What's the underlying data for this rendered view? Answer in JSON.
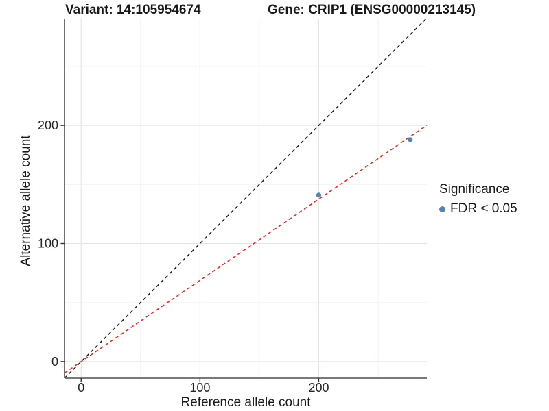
{
  "titles": {
    "variant": "Variant: 14:105954674",
    "gene": "Gene: CRIP1 (ENSG00000213145)"
  },
  "chart_data": {
    "type": "scatter",
    "title_left": "Variant: 14:105954674",
    "title_right": "Gene: CRIP1 (ENSG00000213145)",
    "xlabel": "Reference allele count",
    "ylabel": "Alternative allele count",
    "xlim": [
      -14,
      291
    ],
    "ylim": [
      -14,
      290
    ],
    "x_major_ticks": [
      0,
      100,
      200
    ],
    "y_major_ticks": [
      0,
      100,
      200
    ],
    "x_minor_ticks": [
      50,
      150,
      250
    ],
    "y_minor_ticks": [
      50,
      150,
      250
    ],
    "grid": "major and minor gridlines on, white background",
    "points": [
      {
        "x": 200,
        "y": 141,
        "series": "FDR < 0.05"
      },
      {
        "x": 277,
        "y": 188,
        "series": "FDR < 0.05"
      }
    ],
    "point_color": "#5384b4",
    "lines": [
      {
        "name": "identity-line",
        "slope": 1,
        "intercept": 0,
        "color": "#1a1a1a",
        "style": "dashed"
      },
      {
        "name": "fitted-line",
        "slope": 0.688,
        "intercept": 0,
        "color": "#f02020",
        "style": "dashed"
      }
    ],
    "legend": {
      "title": "Significance",
      "position": "right",
      "items": [
        {
          "label": "FDR < 0.05",
          "color": "#5384b4"
        }
      ]
    },
    "colors": {
      "grid_major": "#e4e4e4",
      "grid_minor": "#f2f2f2",
      "axis_line": "#4d4d4d",
      "tick": "#333333"
    }
  }
}
